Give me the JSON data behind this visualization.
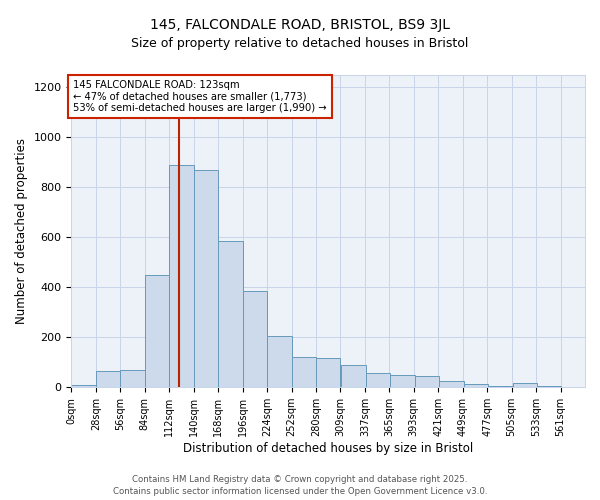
{
  "title1": "145, FALCONDALE ROAD, BRISTOL, BS9 3JL",
  "title2": "Size of property relative to detached houses in Bristol",
  "xlabel": "Distribution of detached houses by size in Bristol",
  "ylabel": "Number of detached properties",
  "bar_values": [
    10,
    65,
    70,
    450,
    890,
    870,
    585,
    385,
    205,
    120,
    115,
    90,
    55,
    50,
    45,
    25,
    12,
    5,
    15,
    5,
    2,
    2
  ],
  "bar_left_edges": [
    0,
    28,
    56,
    84,
    112,
    140,
    168,
    196,
    224,
    252,
    280,
    309,
    337,
    365,
    393,
    421,
    449,
    477,
    505,
    533,
    561,
    589
  ],
  "bin_width": 28,
  "xlabels": [
    "0sqm",
    "28sqm",
    "56sqm",
    "84sqm",
    "112sqm",
    "140sqm",
    "168sqm",
    "196sqm",
    "224sqm",
    "252sqm",
    "280sqm",
    "309sqm",
    "337sqm",
    "365sqm",
    "393sqm",
    "421sqm",
    "449sqm",
    "477sqm",
    "505sqm",
    "533sqm",
    "561sqm"
  ],
  "bar_color": "#ccdaeb",
  "bar_edgecolor": "#6699bb",
  "vline_x": 123,
  "vline_color": "#bb2200",
  "annotation_line1": "145 FALCONDALE ROAD: 123sqm",
  "annotation_line2": "← 47% of detached houses are smaller (1,773)",
  "annotation_line3": "53% of semi-detached houses are larger (1,990) →",
  "ylim": [
    0,
    1250
  ],
  "yticks": [
    0,
    200,
    400,
    600,
    800,
    1000,
    1200
  ],
  "grid_color": "#c8d4e8",
  "bg_color": "#edf2f9",
  "footer1": "Contains HM Land Registry data © Crown copyright and database right 2025.",
  "footer2": "Contains public sector information licensed under the Open Government Licence v3.0."
}
